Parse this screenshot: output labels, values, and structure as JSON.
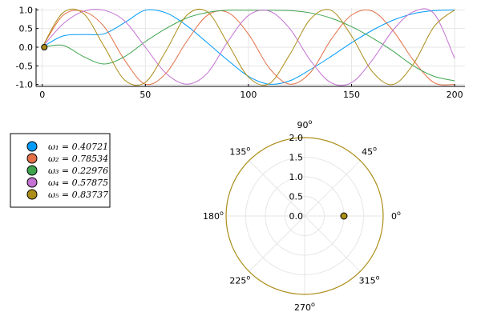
{
  "chart_data": [
    {
      "type": "line",
      "title": "",
      "xlabel": "",
      "ylabel": "",
      "xlim": [
        -3,
        205
      ],
      "ylim": [
        -1.05,
        1.05
      ],
      "xticks": [
        0,
        50,
        100,
        150,
        200
      ],
      "xtick_labels": [
        "0",
        "50",
        "100",
        "150",
        "200"
      ],
      "yticks": [
        -1.0,
        -0.5,
        0.0,
        0.5,
        1.0
      ],
      "ytick_labels": [
        "-1.0",
        "-0.5",
        "0.0",
        "0.5",
        "1.0"
      ],
      "grid": true,
      "x": [
        0,
        10,
        20,
        30,
        40,
        50,
        60,
        70,
        80,
        90,
        100,
        110,
        120,
        130,
        140,
        150,
        160,
        170,
        180,
        190,
        200
      ],
      "series": [
        {
          "color": "#009AFA",
          "values": [
            0.0,
            0.3,
            0.34,
            0.36,
            0.66,
            0.99,
            0.92,
            0.58,
            0.12,
            -0.35,
            -0.78,
            -0.99,
            -0.9,
            -0.6,
            -0.25,
            0.12,
            0.45,
            0.72,
            0.9,
            0.98,
            1.0
          ]
        },
        {
          "color": "#E36F47",
          "values": [
            0.0,
            0.85,
            0.96,
            0.55,
            -0.35,
            -0.99,
            -0.7,
            0.15,
            0.85,
            0.93,
            0.35,
            -0.55,
            -0.99,
            -0.68,
            0.2,
            0.86,
            0.97,
            0.45,
            -0.35,
            -0.95,
            -1.0
          ]
        },
        {
          "color": "#3EA44E",
          "values": [
            0.0,
            0.05,
            -0.25,
            -0.45,
            -0.25,
            0.15,
            0.5,
            0.78,
            0.93,
            0.99,
            0.99,
            0.99,
            0.98,
            0.92,
            0.78,
            0.55,
            0.25,
            -0.1,
            -0.5,
            -0.78,
            -0.9
          ]
        },
        {
          "color": "#C371D2",
          "values": [
            0.0,
            0.62,
            0.96,
            0.99,
            0.7,
            0.0,
            -0.7,
            -0.99,
            -0.7,
            0.15,
            0.85,
            0.97,
            0.5,
            -0.35,
            -0.95,
            -0.95,
            -0.35,
            0.45,
            0.95,
            0.9,
            -0.3
          ]
        },
        {
          "color": "#AC8D18",
          "values": [
            0.0,
            0.92,
            0.9,
            0.02,
            -0.88,
            -0.94,
            -0.1,
            0.85,
            0.95,
            0.1,
            -0.8,
            -0.98,
            -0.2,
            0.75,
            0.99,
            0.3,
            -0.65,
            -1.0,
            -0.45,
            0.55,
            1.0
          ]
        }
      ],
      "start_point": {
        "x": 1,
        "y": 0.0,
        "color": "#AC8D18"
      }
    },
    {
      "type": "scatter",
      "projection": "polar",
      "r_ticks": [
        0.0,
        0.5,
        1.0,
        1.5,
        2.0
      ],
      "r_tick_labels": [
        "0.0",
        "0.5",
        "1.0",
        "1.5",
        "2.0"
      ],
      "r_max": 2.0,
      "theta_ticks": [
        0,
        45,
        90,
        135,
        180,
        225,
        270,
        315
      ],
      "theta_tick_labels": [
        "0",
        "45",
        "90",
        "135",
        "180",
        "225",
        "270",
        "315"
      ],
      "grid": true,
      "outer_ring_color": "#AC8D18",
      "points": [
        {
          "r": 1.0,
          "theta": 0,
          "color": "#AC8D18"
        }
      ]
    }
  ],
  "legend": {
    "placement": "left",
    "entries": [
      {
        "label": "ω₁ = 0.40721",
        "color": "#009AFA"
      },
      {
        "label": "ω₂ = 0.78534",
        "color": "#E36F47"
      },
      {
        "label": "ω₃ = 0.22976",
        "color": "#3EA44E"
      },
      {
        "label": "ω₄ = 0.57875",
        "color": "#C371D2"
      },
      {
        "label": "ω₅ = 0.83737",
        "color": "#AC8D18"
      }
    ]
  }
}
